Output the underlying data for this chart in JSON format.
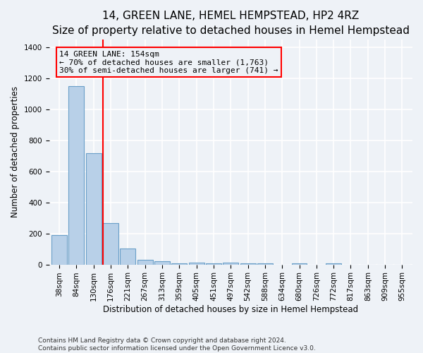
{
  "title": "14, GREEN LANE, HEMEL HEMPSTEAD, HP2 4RZ",
  "subtitle": "Size of property relative to detached houses in Hemel Hempstead",
  "xlabel": "Distribution of detached houses by size in Hemel Hempstead",
  "ylabel": "Number of detached properties",
  "categories": [
    "38sqm",
    "84sqm",
    "130sqm",
    "176sqm",
    "221sqm",
    "267sqm",
    "313sqm",
    "359sqm",
    "405sqm",
    "451sqm",
    "497sqm",
    "542sqm",
    "588sqm",
    "634sqm",
    "680sqm",
    "726sqm",
    "772sqm",
    "817sqm",
    "863sqm",
    "909sqm",
    "955sqm"
  ],
  "values": [
    190,
    1150,
    720,
    265,
    105,
    30,
    22,
    8,
    12,
    8,
    12,
    5,
    8,
    0,
    5,
    0,
    8,
    0,
    0,
    0,
    0
  ],
  "bar_color": "#b8d0e8",
  "bar_edge_color": "#6a9fc8",
  "ylim": [
    0,
    1450
  ],
  "yticks": [
    0,
    200,
    400,
    600,
    800,
    1000,
    1200,
    1400
  ],
  "red_line_x": 2.55,
  "annotation_text": "14 GREEN LANE: 154sqm\n← 70% of detached houses are smaller (1,763)\n30% of semi-detached houses are larger (741) →",
  "footer": "Contains HM Land Registry data © Crown copyright and database right 2024.\nContains public sector information licensed under the Open Government Licence v3.0.",
  "background_color": "#eef2f7",
  "grid_color": "#ffffff",
  "title_fontsize": 11,
  "subtitle_fontsize": 9.5,
  "label_fontsize": 8.5,
  "tick_fontsize": 7.5,
  "annotation_fontsize": 8,
  "footer_fontsize": 6.5
}
